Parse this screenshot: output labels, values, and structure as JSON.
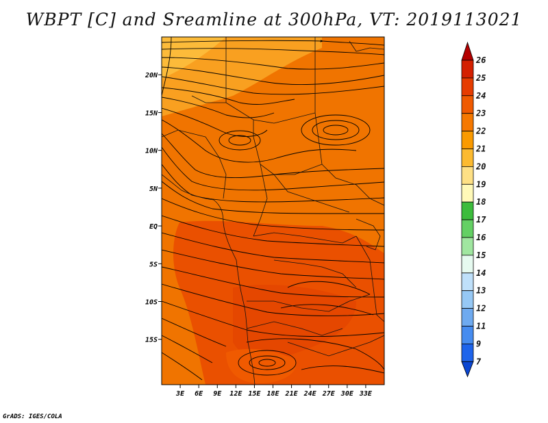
{
  "title": "WBPT [C] and Sreamline at 300hPa, VT: 2019113021",
  "credit": "GrADS: IGES/COLA",
  "map": {
    "lon_range": [
      0,
      36
    ],
    "lat_range": [
      -21,
      25
    ],
    "lat_labels": [
      {
        "lat": 20,
        "text": "20N"
      },
      {
        "lat": 15,
        "text": "15N"
      },
      {
        "lat": 10,
        "text": "10N"
      },
      {
        "lat": 5,
        "text": "5N"
      },
      {
        "lat": 0,
        "text": "EQ"
      },
      {
        "lat": -5,
        "text": "5S"
      },
      {
        "lat": -10,
        "text": "10S"
      },
      {
        "lat": -15,
        "text": "15S"
      }
    ],
    "lon_labels": [
      {
        "lon": 3,
        "text": "3E"
      },
      {
        "lon": 6,
        "text": "6E"
      },
      {
        "lon": 9,
        "text": "9E"
      },
      {
        "lon": 12,
        "text": "12E"
      },
      {
        "lon": 15,
        "text": "15E"
      },
      {
        "lon": 18,
        "text": "18E"
      },
      {
        "lon": 21,
        "text": "21E"
      },
      {
        "lon": 24,
        "text": "24E"
      },
      {
        "lon": 27,
        "text": "27E"
      },
      {
        "lon": 30,
        "text": "30E"
      },
      {
        "lon": 33,
        "text": "33E"
      }
    ]
  },
  "colorbar": {
    "levels": [
      "26",
      "25",
      "24",
      "23",
      "22",
      "21",
      "20",
      "19",
      "18",
      "17",
      "16",
      "15",
      "14",
      "13",
      "12",
      "11",
      "9",
      "7"
    ],
    "colors": [
      "#b40000",
      "#d42000",
      "#e63c00",
      "#f05a00",
      "#f57800",
      "#fa9a00",
      "#fcba30",
      "#fee085",
      "#fff9b8",
      "#3cbc3c",
      "#64d064",
      "#a0e6a0",
      "#e6faf0",
      "#bfe0fa",
      "#96c8f5",
      "#6eaaf0",
      "#468cf0",
      "#1e64eb",
      "#0a46d2"
    ]
  }
}
